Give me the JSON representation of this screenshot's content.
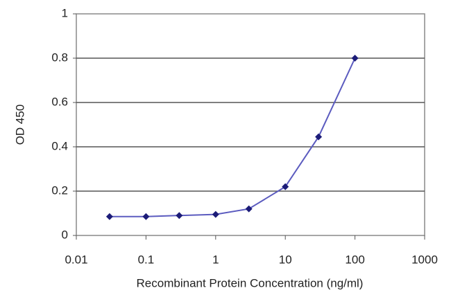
{
  "chart_data": {
    "type": "line",
    "xlabel": "Recombinant Protein Concentration (ng/ml)",
    "ylabel": "OD 450",
    "x": [
      0.03,
      0.1,
      0.3,
      1,
      3,
      10,
      30,
      100
    ],
    "values": [
      0.085,
      0.085,
      0.09,
      0.095,
      0.12,
      0.22,
      0.445,
      0.8
    ],
    "color": "#5b5bbf",
    "marker_color": "#1c1c78",
    "xscale": "log",
    "xlim": [
      0.01,
      1000
    ],
    "xticks": [
      0.01,
      0.1,
      1,
      10,
      100,
      1000
    ],
    "ylim": [
      0,
      1
    ],
    "yticks": [
      0,
      0.2,
      0.4,
      0.6,
      0.8,
      1
    ],
    "grid": true
  }
}
